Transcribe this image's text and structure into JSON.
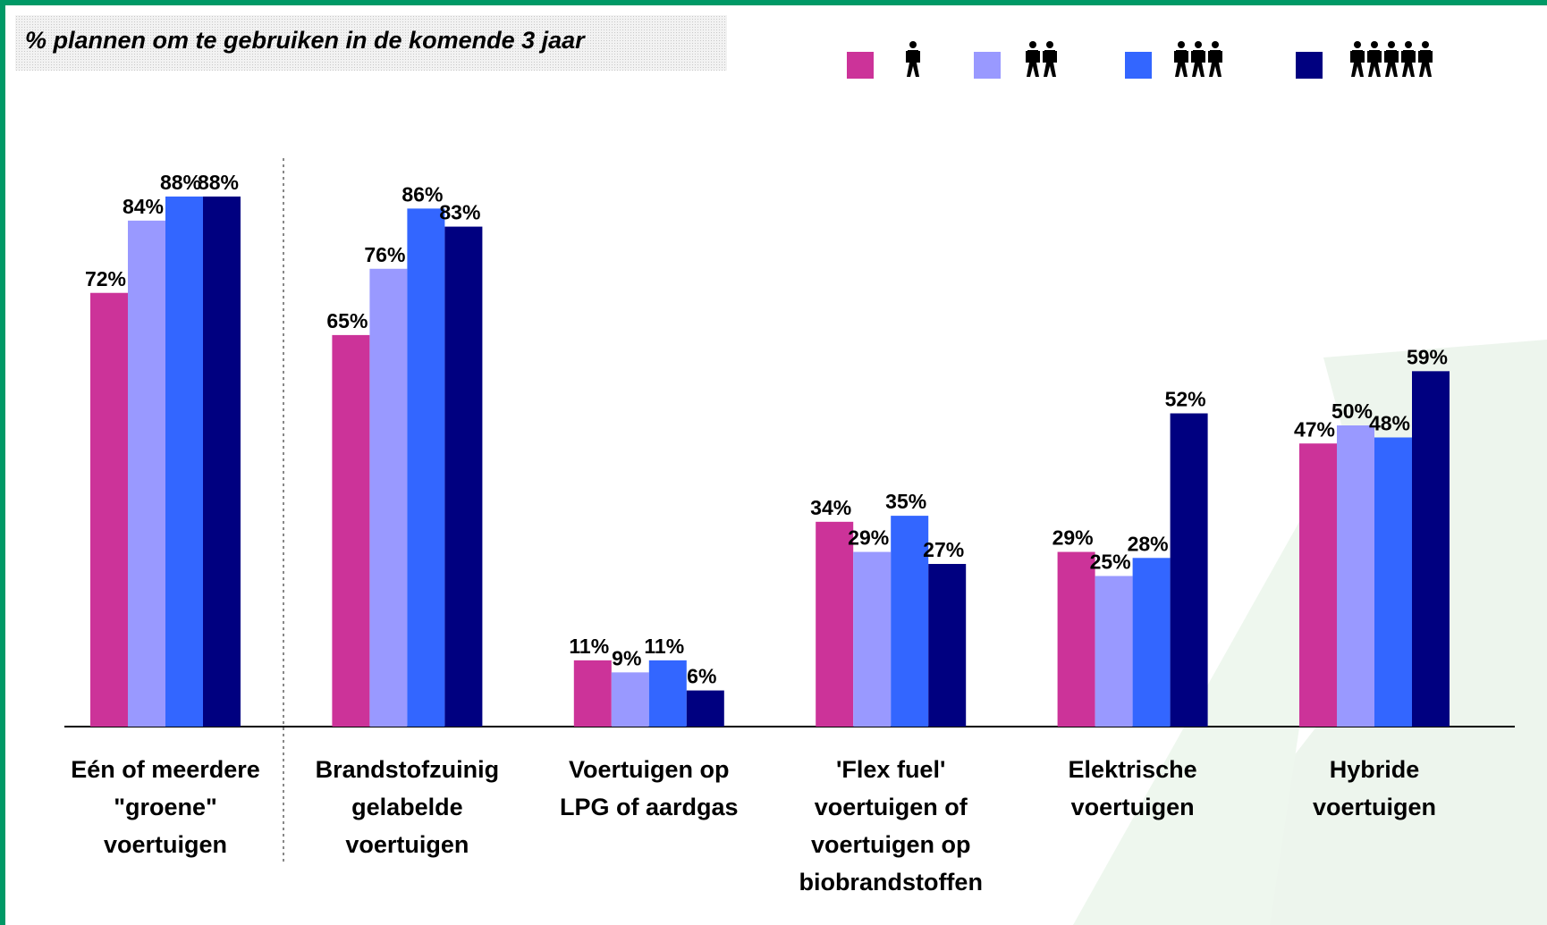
{
  "chart_data": {
    "type": "bar",
    "title": "% plannen om te gebruiken in de komende 3 jaar",
    "categories": [
      [
        "Eén of meerdere",
        "\"groene\"",
        "voertuigen"
      ],
      [
        "Brandstofzuinig",
        "gelabelde",
        "voertuigen"
      ],
      [
        "Voertuigen op",
        "LPG of aardgas"
      ],
      [
        "'Flex fuel'",
        "voertuigen of",
        "voertuigen op",
        "biobrandstoffen"
      ],
      [
        "Elektrische",
        "voertuigen"
      ],
      [
        "Hybride",
        "voertuigen"
      ]
    ],
    "series": [
      {
        "color": "#cc3399",
        "values": [
          72,
          65,
          11,
          34,
          29,
          47
        ],
        "value_labels": [
          "72%",
          "65%",
          "11%",
          "34%",
          "29%",
          "47%"
        ]
      },
      {
        "color": "#9999ff",
        "values": [
          84,
          76,
          9,
          29,
          25,
          50
        ],
        "value_labels": [
          "84%",
          "76%",
          "9%",
          "29%",
          "25%",
          "50%"
        ]
      },
      {
        "color": "#3366ff",
        "values": [
          88,
          86,
          11,
          35,
          28,
          48
        ],
        "value_labels": [
          "88%",
          "86%",
          "11%",
          "35%",
          "28%",
          "48%"
        ]
      },
      {
        "color": "#000080",
        "values": [
          88,
          83,
          6,
          27,
          52,
          59
        ],
        "value_labels": [
          "88%",
          "83%",
          "6%",
          "27%",
          "52%",
          "59%"
        ]
      }
    ]
  }
}
